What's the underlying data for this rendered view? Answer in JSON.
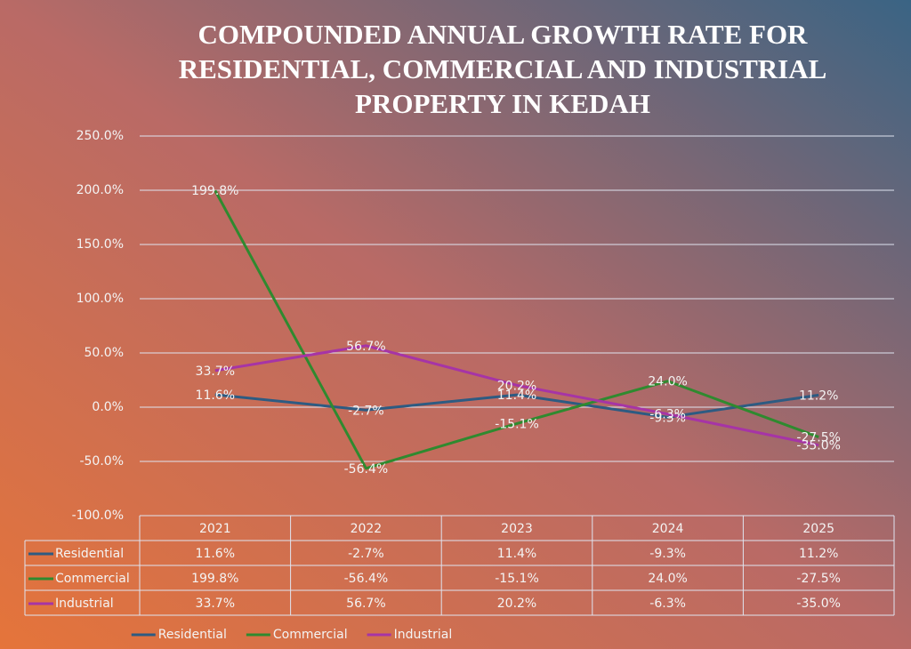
{
  "chart_data": {
    "type": "line",
    "title": [
      "COMPOUNDED ANNUAL GROWTH RATE FOR",
      "RESIDENTIAL, COMMERCIAL AND INDUSTRIAL",
      "PROPERTY IN KEDAH"
    ],
    "categories": [
      "2021",
      "2022",
      "2023",
      "2024",
      "2025"
    ],
    "series": [
      {
        "name": "Residential",
        "color": "#2d5b82",
        "values": [
          11.6,
          -2.7,
          11.4,
          -9.3,
          11.2
        ],
        "value_labels": [
          "11.6%",
          "-2.7%",
          "11.4%",
          "-9.3%",
          "11.2%"
        ]
      },
      {
        "name": "Commercial",
        "color": "#2f8a2f",
        "values": [
          199.8,
          -56.4,
          -15.1,
          24.0,
          -27.5
        ],
        "value_labels": [
          "199.8%",
          "-56.4%",
          "-15.1%",
          "24.0%",
          "-27.5%"
        ]
      },
      {
        "name": "Industrial",
        "color": "#a634a6",
        "values": [
          33.7,
          56.7,
          20.2,
          -6.3,
          -35.0
        ],
        "value_labels": [
          "33.7%",
          "56.7%",
          "20.2%",
          "-6.3%",
          "-35.0%"
        ]
      }
    ],
    "ylim": [
      -100,
      250
    ],
    "yticks": [
      {
        "value": -100,
        "label": "-100.0%"
      },
      {
        "value": -50,
        "label": "-50.0%"
      },
      {
        "value": 0,
        "label": "0.0%"
      },
      {
        "value": 50,
        "label": "50.0%"
      },
      {
        "value": 100,
        "label": "100.0%"
      },
      {
        "value": 150,
        "label": "150.0%"
      },
      {
        "value": 200,
        "label": "200.0%"
      },
      {
        "value": 250,
        "label": "250.0%"
      }
    ],
    "grid": true,
    "legend": "bottom"
  }
}
